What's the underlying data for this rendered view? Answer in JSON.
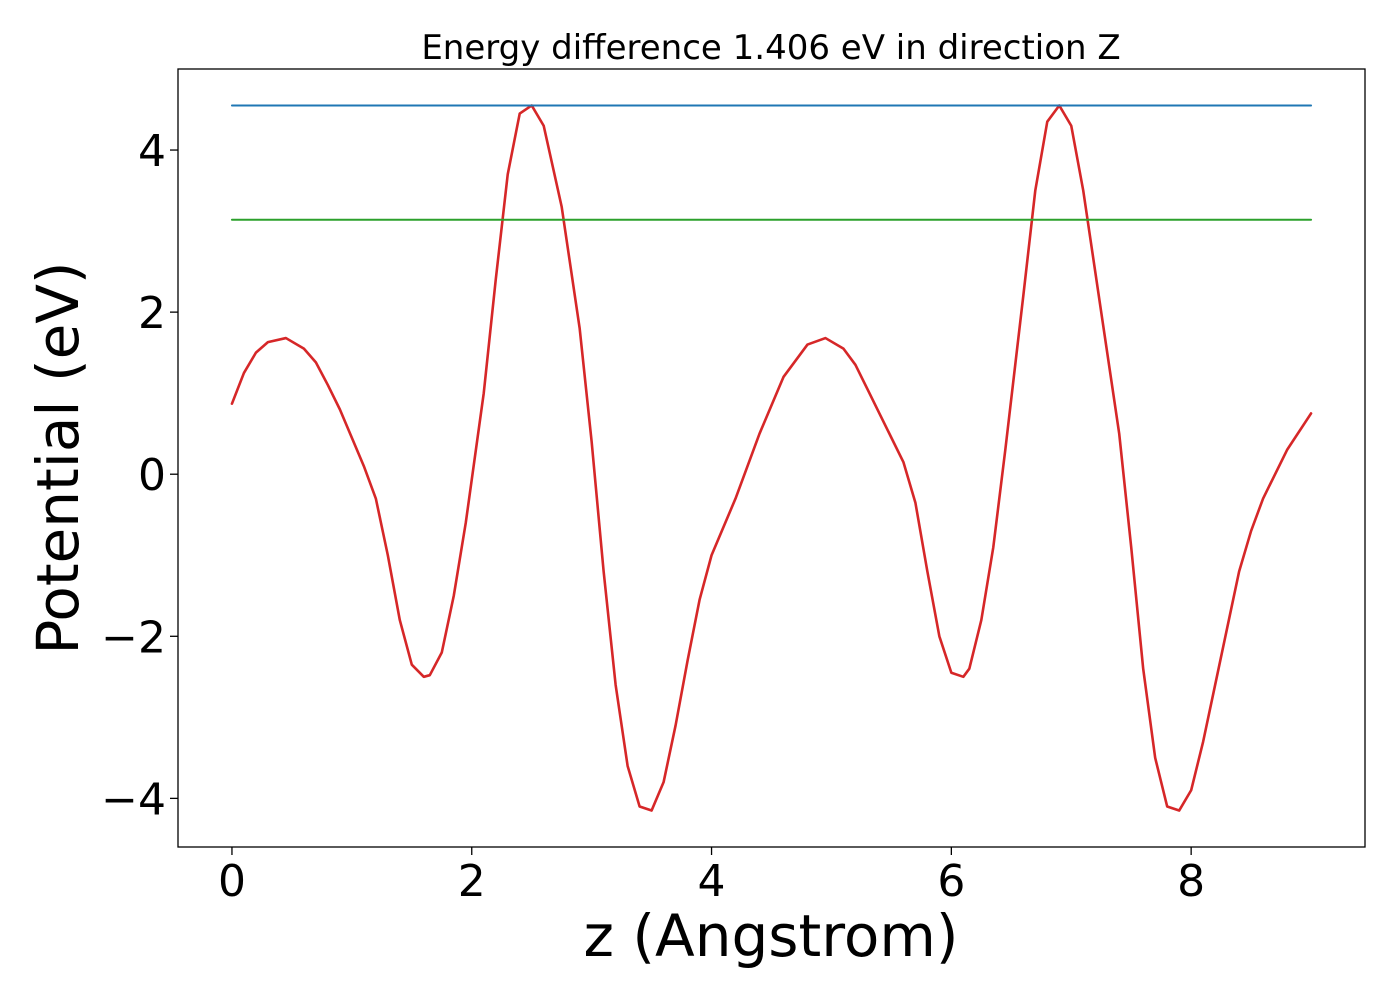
{
  "chart_data": {
    "type": "line",
    "title": "Energy difference 1.406 eV in direction Z",
    "xlabel": "z (Angstrom)",
    "ylabel": "Potential (eV)",
    "xlim": [
      -0.45,
      9.45
    ],
    "ylim": [
      -4.6,
      5.0
    ],
    "xticks": [
      0,
      2,
      4,
      6,
      8
    ],
    "yticks": [
      -4,
      -2,
      0,
      2,
      4
    ],
    "ytick_labels": [
      "−4",
      "−2",
      "0",
      "2",
      "4"
    ],
    "grid": false,
    "legend": "none",
    "series": [
      {
        "color": "#d62728",
        "x": [
          0,
          0.1,
          0.2,
          0.3,
          0.45,
          0.6,
          0.7,
          0.8,
          0.9,
          1.0,
          1.1,
          1.2,
          1.3,
          1.4,
          1.5,
          1.6,
          1.65,
          1.75,
          1.85,
          1.95,
          2.1,
          2.2,
          2.3,
          2.4,
          2.5,
          2.6,
          2.75,
          2.9,
          3.0,
          3.1,
          3.2,
          3.3,
          3.4,
          3.5,
          3.6,
          3.7,
          3.8,
          3.9,
          4.0,
          4.2,
          4.4,
          4.6,
          4.8,
          4.95,
          5.1,
          5.2,
          5.3,
          5.4,
          5.5,
          5.6,
          5.7,
          5.8,
          5.9,
          6.0,
          6.1,
          6.15,
          6.25,
          6.35,
          6.45,
          6.6,
          6.7,
          6.8,
          6.9,
          7.0,
          7.1,
          7.25,
          7.4,
          7.5,
          7.6,
          7.7,
          7.8,
          7.9,
          8.0,
          8.1,
          8.2,
          8.3,
          8.4,
          8.5,
          8.6,
          8.8,
          9.0
        ],
        "y": [
          0.87,
          1.25,
          1.5,
          1.63,
          1.68,
          1.55,
          1.38,
          1.1,
          0.8,
          0.45,
          0.1,
          -0.3,
          -1.0,
          -1.8,
          -2.35,
          -2.5,
          -2.48,
          -2.2,
          -1.5,
          -0.6,
          1.0,
          2.4,
          3.7,
          4.45,
          4.55,
          4.3,
          3.3,
          1.8,
          0.4,
          -1.2,
          -2.6,
          -3.6,
          -4.1,
          -4.15,
          -3.8,
          -3.1,
          -2.3,
          -1.55,
          -1.0,
          -0.3,
          0.5,
          1.2,
          1.6,
          1.68,
          1.55,
          1.35,
          1.05,
          0.75,
          0.45,
          0.15,
          -0.35,
          -1.2,
          -2.0,
          -2.45,
          -2.5,
          -2.4,
          -1.8,
          -0.9,
          0.3,
          2.2,
          3.5,
          4.35,
          4.55,
          4.3,
          3.5,
          2.0,
          0.5,
          -0.9,
          -2.4,
          -3.5,
          -4.1,
          -4.15,
          -3.9,
          -3.3,
          -2.6,
          -1.9,
          -1.2,
          -0.7,
          -0.3,
          0.3,
          0.75
        ]
      },
      {
        "color": "#1f77b4",
        "x": [
          0,
          9
        ],
        "y": [
          4.55,
          4.55
        ]
      },
      {
        "color": "#2ca02c",
        "x": [
          0,
          9
        ],
        "y": [
          3.14,
          3.14
        ]
      }
    ]
  }
}
